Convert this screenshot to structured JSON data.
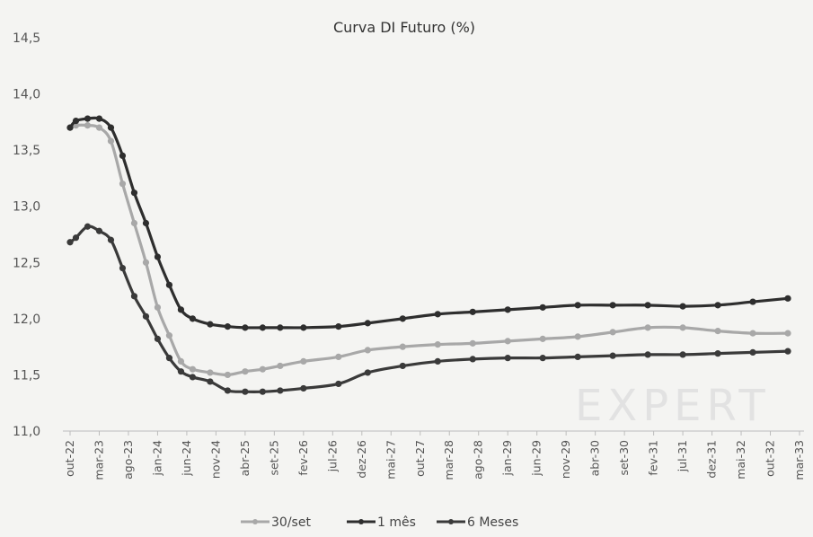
{
  "chart_data": {
    "type": "line",
    "title": "Curva DI Futuro (%)",
    "xlabel": "",
    "ylabel": "",
    "ylim": [
      11.0,
      14.5
    ],
    "y_ticks": [
      "11,0",
      "11,5",
      "12,0",
      "12,5",
      "13,0",
      "13,5",
      "14,0",
      "14,5"
    ],
    "grid": false,
    "legend_position": "bottom",
    "watermark": "EXPERT",
    "x_tick_labels": [
      "out-22",
      "mar-23",
      "ago-23",
      "jan-24",
      "jun-24",
      "nov-24",
      "abr-25",
      "set-25",
      "fev-26",
      "jul-26",
      "dez-26",
      "mai-27",
      "out-27",
      "mar-28",
      "ago-28",
      "jan-29",
      "jun-29",
      "nov-29",
      "abr-30",
      "set-30",
      "fev-31",
      "jul-31",
      "dez-31",
      "mai-32",
      "out-32",
      "mar-33"
    ],
    "series": [
      {
        "name": "30/set",
        "color": "#a8a8a8",
        "x": [
          "out-22",
          "nov-22",
          "jan-23",
          "mar-23",
          "mai-23",
          "jul-23",
          "set-23",
          "nov-23",
          "jan-24",
          "mar-24",
          "mai-24",
          "jul-24",
          "out-24",
          "jan-25",
          "abr-25",
          "jul-25",
          "out-25",
          "fev-26",
          "ago-26",
          "jan-27",
          "jul-27",
          "jan-28",
          "jul-28",
          "jan-29",
          "jul-29",
          "jan-30",
          "jul-30",
          "jan-31",
          "jul-31",
          "jan-32",
          "jul-32",
          "jan-33"
        ],
        "values": [
          13.7,
          13.72,
          13.72,
          13.7,
          13.58,
          13.2,
          12.85,
          12.5,
          12.1,
          11.85,
          11.62,
          11.55,
          11.52,
          11.5,
          11.53,
          11.55,
          11.58,
          11.62,
          11.66,
          11.72,
          11.75,
          11.77,
          11.78,
          11.8,
          11.82,
          11.84,
          11.88,
          11.92,
          11.92,
          11.89,
          11.87,
          11.87
        ]
      },
      {
        "name": "1 mês",
        "color": "#2e2e2e",
        "x": [
          "out-22",
          "nov-22",
          "jan-23",
          "mar-23",
          "mai-23",
          "jul-23",
          "set-23",
          "nov-23",
          "jan-24",
          "mar-24",
          "mai-24",
          "jul-24",
          "out-24",
          "jan-25",
          "abr-25",
          "jul-25",
          "out-25",
          "fev-26",
          "ago-26",
          "jan-27",
          "jul-27",
          "jan-28",
          "jul-28",
          "jan-29",
          "jul-29",
          "jan-30",
          "jul-30",
          "jan-31",
          "jul-31",
          "jan-32",
          "jul-32",
          "jan-33"
        ],
        "values": [
          13.7,
          13.76,
          13.78,
          13.78,
          13.7,
          13.45,
          13.12,
          12.85,
          12.55,
          12.3,
          12.08,
          12.0,
          11.95,
          11.93,
          11.92,
          11.92,
          11.92,
          11.92,
          11.93,
          11.96,
          12.0,
          12.04,
          12.06,
          12.08,
          12.1,
          12.12,
          12.12,
          12.12,
          12.11,
          12.12,
          12.15,
          12.18
        ]
      },
      {
        "name": "6 Meses",
        "color": "#3a3a3a",
        "x": [
          "out-22",
          "nov-22",
          "jan-23",
          "mar-23",
          "mai-23",
          "jul-23",
          "set-23",
          "nov-23",
          "jan-24",
          "mar-24",
          "mai-24",
          "jul-24",
          "out-24",
          "jan-25",
          "abr-25",
          "jul-25",
          "out-25",
          "fev-26",
          "ago-26",
          "jan-27",
          "jul-27",
          "jan-28",
          "jul-28",
          "jan-29",
          "jul-29",
          "jan-30",
          "jul-30",
          "jan-31",
          "jul-31",
          "jan-32",
          "jul-32",
          "jan-33"
        ],
        "values": [
          12.68,
          12.72,
          12.82,
          12.78,
          12.7,
          12.45,
          12.2,
          12.02,
          11.82,
          11.65,
          11.53,
          11.48,
          11.44,
          11.36,
          11.35,
          11.35,
          11.36,
          11.38,
          11.42,
          11.52,
          11.58,
          11.62,
          11.64,
          11.65,
          11.65,
          11.66,
          11.67,
          11.68,
          11.68,
          11.69,
          11.7,
          11.71
        ]
      }
    ]
  }
}
